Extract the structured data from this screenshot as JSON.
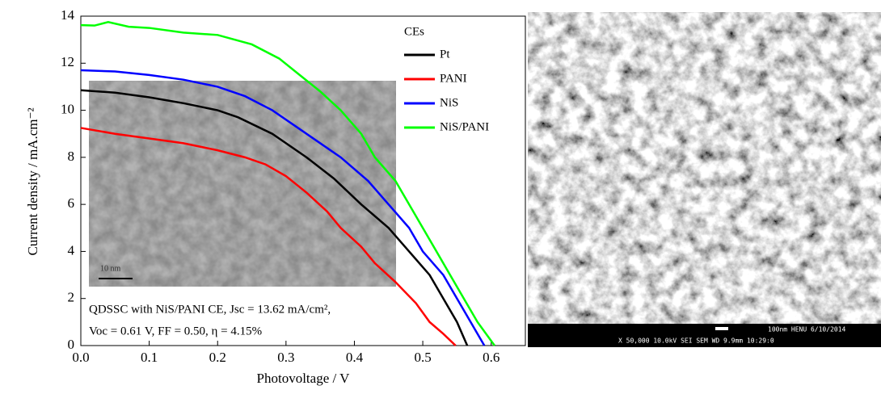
{
  "chart_data": {
    "type": "line",
    "xlabel": "Photovoltage / V",
    "ylabel": "Current density / mA.cm⁻²",
    "xlim": [
      0,
      0.65
    ],
    "ylim": [
      0,
      14
    ],
    "xticks": [
      {
        "value": 0,
        "label": "0.0"
      },
      0.1,
      0.2,
      0.3,
      0.4,
      0.5,
      0.6
    ],
    "yticks": [
      0,
      2,
      4,
      6,
      8,
      10,
      12,
      14
    ],
    "legend_title": "CEs",
    "legend": "upper right",
    "series": [
      {
        "name": "Pt",
        "color": "#000000",
        "x": [
          0,
          0.05,
          0.1,
          0.15,
          0.2,
          0.23,
          0.28,
          0.33,
          0.37,
          0.41,
          0.45,
          0.48,
          0.51,
          0.53,
          0.55,
          0.565
        ],
        "values": [
          10.85,
          10.75,
          10.55,
          10.3,
          10.0,
          9.7,
          9.0,
          8.0,
          7.1,
          6.0,
          5.0,
          4.0,
          3.0,
          2.0,
          1.0,
          0
        ]
      },
      {
        "name": "PANI",
        "color": "#ff0000",
        "x": [
          0,
          0.05,
          0.1,
          0.15,
          0.2,
          0.24,
          0.27,
          0.3,
          0.33,
          0.36,
          0.38,
          0.41,
          0.43,
          0.46,
          0.49,
          0.51,
          0.53,
          0.548
        ],
        "values": [
          9.25,
          9.0,
          8.8,
          8.6,
          8.3,
          8.0,
          7.7,
          7.2,
          6.5,
          5.7,
          5.0,
          4.2,
          3.5,
          2.7,
          1.8,
          1.0,
          0.5,
          0
        ]
      },
      {
        "name": "NiS",
        "color": "#0000ff",
        "x": [
          0,
          0.05,
          0.1,
          0.15,
          0.2,
          0.24,
          0.28,
          0.33,
          0.38,
          0.42,
          0.45,
          0.48,
          0.5,
          0.53,
          0.55,
          0.57,
          0.59
        ],
        "values": [
          11.7,
          11.65,
          11.5,
          11.3,
          11.0,
          10.6,
          10.0,
          9.0,
          8.0,
          7.0,
          6.0,
          5.0,
          4.0,
          3.0,
          2.0,
          1.0,
          0
        ]
      },
      {
        "name": "NiS/PANI",
        "color": "#00ff00",
        "x": [
          0,
          0.02,
          0.04,
          0.07,
          0.1,
          0.15,
          0.2,
          0.25,
          0.29,
          0.32,
          0.35,
          0.38,
          0.41,
          0.43,
          0.46,
          0.48,
          0.5,
          0.52,
          0.54,
          0.56,
          0.58,
          0.605
        ],
        "values": [
          13.62,
          13.6,
          13.75,
          13.55,
          13.5,
          13.3,
          13.2,
          12.8,
          12.2,
          11.5,
          10.8,
          10.0,
          9.0,
          8.0,
          7.0,
          6.0,
          5.0,
          4.0,
          3.0,
          2.0,
          1.0,
          0
        ]
      }
    ],
    "annotations": [
      "QDSSC with NiS/PANI CE, Jsc = 13.62 mA/cm², ",
      "Voc = 0.61 V, FF = 0.50,  η = 4.15%"
    ],
    "inset_scale_label": "10 nm",
    "sem_labels": [
      "100nm HENU   6/10/2014",
      "X 50,000     10.0kV SEI      SEM     WD 9.9mm  10:29:0"
    ]
  }
}
